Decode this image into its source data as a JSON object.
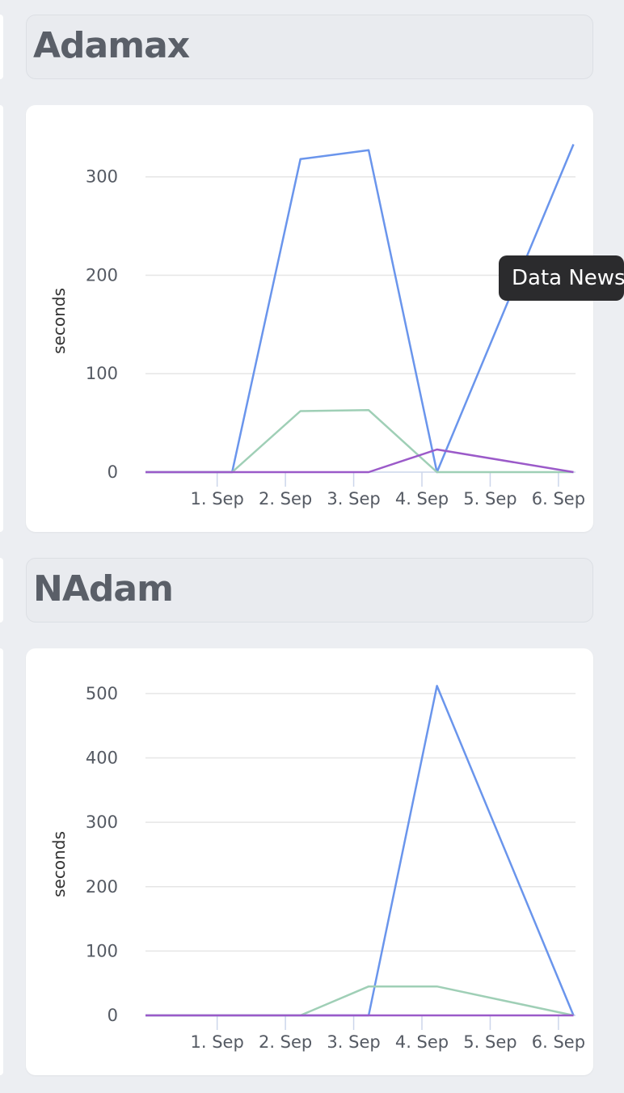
{
  "panels": [
    {
      "title": "Adamax"
    },
    {
      "title": "NAdam"
    }
  ],
  "tooltip": {
    "text": "Data News"
  },
  "colors": {
    "blue": "#6a95ec",
    "green": "#9fcfb6",
    "purple": "#9b5ac9"
  },
  "chart_data": [
    {
      "type": "line",
      "ylabel": "seconds",
      "xlabel": "",
      "ylim": [
        0,
        340
      ],
      "yticks": [
        0,
        100,
        200,
        300
      ],
      "x_ticks": [
        "1. Sep",
        "2. Sep",
        "3. Sep",
        "4. Sep",
        "5. Sep",
        "6. Sep"
      ],
      "x_range": [
        -1.05,
        5.25
      ],
      "grid": true,
      "series": [
        {
          "color": "blue",
          "x": [
            -1.05,
            0.22,
            1.22,
            2.22,
            3.22,
            5.22
          ],
          "values": [
            0,
            0,
            318,
            327,
            0,
            333
          ]
        },
        {
          "color": "green",
          "x": [
            -1.05,
            0.22,
            1.22,
            2.22,
            3.22,
            5.22
          ],
          "values": [
            0,
            0,
            62,
            63,
            0,
            0
          ]
        },
        {
          "color": "purple",
          "x": [
            -1.05,
            2.22,
            3.22,
            5.22
          ],
          "values": [
            0,
            0,
            23,
            0
          ]
        }
      ]
    },
    {
      "type": "line",
      "ylabel": "seconds",
      "xlabel": "",
      "ylim": [
        0,
        520
      ],
      "yticks": [
        0,
        100,
        200,
        300,
        400,
        500
      ],
      "x_ticks": [
        "1. Sep",
        "2. Sep",
        "3. Sep",
        "4. Sep",
        "5. Sep",
        "6. Sep"
      ],
      "x_range": [
        -1.05,
        5.25
      ],
      "grid": true,
      "series": [
        {
          "color": "blue",
          "x": [
            -1.05,
            2.22,
            3.22,
            5.22
          ],
          "values": [
            0,
            0,
            512,
            0
          ]
        },
        {
          "color": "green",
          "x": [
            -1.05,
            1.22,
            2.22,
            3.22,
            5.22
          ],
          "values": [
            0,
            0,
            45,
            45,
            0
          ]
        },
        {
          "color": "purple",
          "x": [
            -1.05,
            5.22
          ],
          "values": [
            0,
            0
          ]
        }
      ]
    }
  ]
}
